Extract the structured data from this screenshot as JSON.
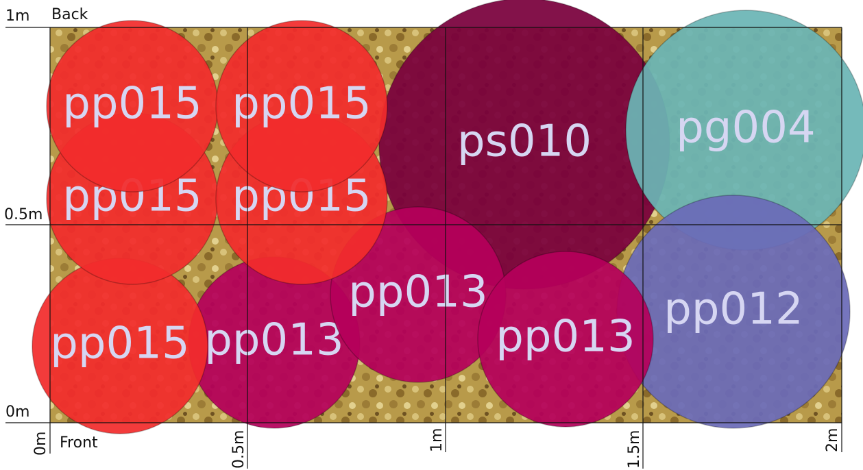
{
  "labels": {
    "back": "Back",
    "front": "Front"
  },
  "y_axis": [
    "1m",
    "0.5m",
    "0m"
  ],
  "x_axis": [
    "0m",
    "0.5m",
    "1m",
    "1.5m",
    "2m"
  ],
  "plants": [
    {
      "label": "ps010",
      "color": "#7a003c"
    },
    {
      "label": "pg004",
      "color": "#6bb5b5"
    },
    {
      "label": "pp012",
      "color": "#6b6bb8"
    },
    {
      "label": "pp013",
      "color": "#b5005a"
    },
    {
      "label": "pp013",
      "color": "#b5005a"
    },
    {
      "label": "pp013",
      "color": "#b5005a"
    },
    {
      "label": "pp015",
      "color": "#f22c2c"
    },
    {
      "label": "pp015",
      "color": "#f22c2c"
    },
    {
      "label": "pp015",
      "color": "#f22c2c"
    },
    {
      "label": "pp015",
      "color": "#f22c2c"
    },
    {
      "label": "pp015",
      "color": "#f22c2c"
    }
  ]
}
